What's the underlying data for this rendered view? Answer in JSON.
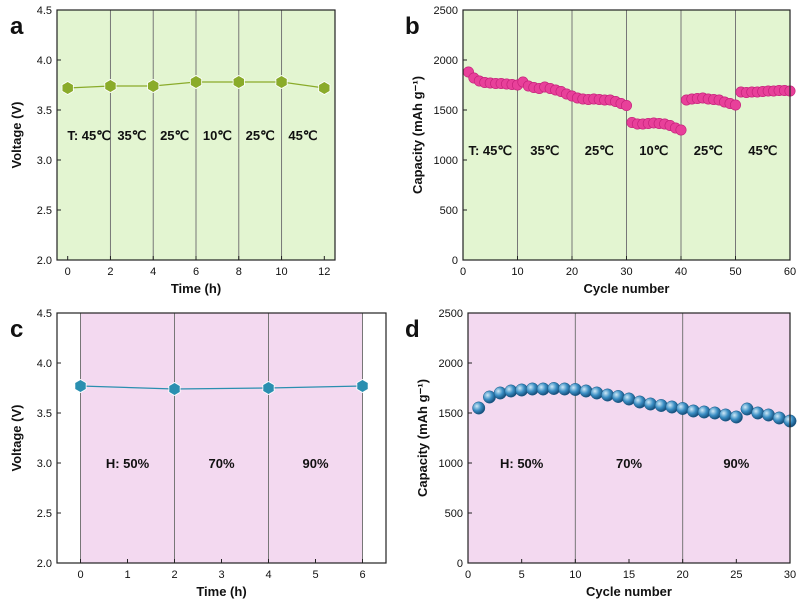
{
  "chart_data": [
    {
      "panel": "a",
      "type": "line",
      "xlabel": "Time (h)",
      "ylabel": "Voltage (V)",
      "xlim": [
        -0.5,
        12.5
      ],
      "ylim": [
        2.0,
        4.5
      ],
      "xticks": [
        "0",
        "2",
        "4",
        "6",
        "8",
        "10",
        "12"
      ],
      "yticks": [
        "2.0",
        "2.5",
        "3.0",
        "3.5",
        "4.0",
        "4.5"
      ],
      "xtick_values": [
        0,
        2,
        4,
        6,
        8,
        10,
        12
      ],
      "ytick_values": [
        2.0,
        2.5,
        3.0,
        3.5,
        4.0,
        4.5
      ],
      "background": "#e3f5d1",
      "dividers": [
        2,
        4,
        6,
        8,
        10
      ],
      "region_labels": [
        {
          "text": "T: 45℃",
          "x": 1.0,
          "y": 3.25
        },
        {
          "text": "35℃",
          "x": 3.0,
          "y": 3.25
        },
        {
          "text": "25℃",
          "x": 5.0,
          "y": 3.25
        },
        {
          "text": "10℃",
          "x": 7.0,
          "y": 3.25
        },
        {
          "text": "25℃",
          "x": 9.0,
          "y": 3.25
        },
        {
          "text": "45℃",
          "x": 11.0,
          "y": 3.25
        }
      ],
      "series": [
        {
          "name": "voltage",
          "color": "#8aab2a",
          "marker": "hexagon",
          "x": [
            0,
            2,
            4,
            6,
            8,
            10,
            12
          ],
          "values": [
            3.72,
            3.74,
            3.74,
            3.78,
            3.78,
            3.78,
            3.72
          ]
        }
      ]
    },
    {
      "panel": "b",
      "type": "scatter",
      "xlabel": "Cycle number",
      "ylabel": "Capacity (mAh g⁻¹)",
      "xlim": [
        0,
        60
      ],
      "ylim": [
        0,
        2500
      ],
      "xticks": [
        "0",
        "10",
        "20",
        "30",
        "40",
        "50",
        "60"
      ],
      "yticks": [
        "0",
        "500",
        "1000",
        "1500",
        "2000",
        "2500"
      ],
      "xtick_values": [
        0,
        10,
        20,
        30,
        40,
        50,
        60
      ],
      "ytick_values": [
        0,
        500,
        1000,
        1500,
        2000,
        2500
      ],
      "background": "#e3f5d1",
      "dividers": [
        10,
        20,
        30,
        40,
        50
      ],
      "region_labels": [
        {
          "text": "T: 45℃",
          "x": 5,
          "y": 1100
        },
        {
          "text": "35℃",
          "x": 15,
          "y": 1100
        },
        {
          "text": "25℃",
          "x": 25,
          "y": 1100
        },
        {
          "text": "10℃",
          "x": 35,
          "y": 1100
        },
        {
          "text": "25℃",
          "x": 45,
          "y": 1100
        },
        {
          "text": "45℃",
          "x": 55,
          "y": 1100
        }
      ],
      "series": [
        {
          "name": "capacity",
          "color": "#e8409a",
          "marker": "circle",
          "x": [
            1,
            2,
            3,
            4,
            5,
            6,
            7,
            8,
            9,
            10,
            11,
            12,
            13,
            14,
            15,
            16,
            17,
            18,
            19,
            20,
            21,
            22,
            23,
            24,
            25,
            26,
            27,
            28,
            29,
            30,
            31,
            32,
            33,
            34,
            35,
            36,
            37,
            38,
            39,
            40,
            41,
            42,
            43,
            44,
            45,
            46,
            47,
            48,
            49,
            50,
            51,
            52,
            53,
            54,
            55,
            56,
            57,
            58,
            59,
            60
          ],
          "values": [
            1880,
            1820,
            1790,
            1775,
            1770,
            1765,
            1765,
            1760,
            1755,
            1750,
            1780,
            1740,
            1725,
            1715,
            1730,
            1715,
            1700,
            1685,
            1660,
            1640,
            1620,
            1610,
            1605,
            1610,
            1605,
            1600,
            1600,
            1585,
            1565,
            1545,
            1375,
            1360,
            1360,
            1365,
            1370,
            1365,
            1360,
            1345,
            1320,
            1300,
            1600,
            1610,
            1615,
            1620,
            1610,
            1605,
            1600,
            1580,
            1565,
            1550,
            1680,
            1675,
            1680,
            1680,
            1685,
            1690,
            1690,
            1695,
            1695,
            1690
          ]
        }
      ]
    },
    {
      "panel": "c",
      "type": "line",
      "xlabel": "Time (h)",
      "ylabel": "Voltage (V)",
      "xlim": [
        -0.5,
        6.5
      ],
      "ylim": [
        2.0,
        4.5
      ],
      "xticks": [
        "0",
        "1",
        "2",
        "3",
        "4",
        "5",
        "6"
      ],
      "yticks": [
        "2.0",
        "2.5",
        "3.0",
        "3.5",
        "4.0",
        "4.5"
      ],
      "xtick_values": [
        0,
        1,
        2,
        3,
        4,
        5,
        6
      ],
      "ytick_values": [
        2.0,
        2.5,
        3.0,
        3.5,
        4.0,
        4.5
      ],
      "background": "#f3d9f0",
      "dividers": [
        2,
        4
      ],
      "region_labels": [
        {
          "text": "H: 50%",
          "x": 1.0,
          "y": 3.0
        },
        {
          "text": "70%",
          "x": 3.0,
          "y": 3.0
        },
        {
          "text": "90%",
          "x": 5.0,
          "y": 3.0
        }
      ],
      "series": [
        {
          "name": "voltage",
          "color": "#2a8fb0",
          "marker": "hexagon",
          "x": [
            0,
            2,
            4,
            6
          ],
          "values": [
            3.77,
            3.74,
            3.75,
            3.77
          ]
        }
      ]
    },
    {
      "panel": "d",
      "type": "scatter",
      "xlabel": "Cycle number",
      "ylabel": "Capacity (mAh g⁻¹)",
      "xlim": [
        0,
        30
      ],
      "ylim": [
        0,
        2500
      ],
      "xticks": [
        "0",
        "5",
        "10",
        "15",
        "20",
        "25",
        "30"
      ],
      "yticks": [
        "0",
        "500",
        "1000",
        "1500",
        "2000",
        "2500"
      ],
      "xtick_values": [
        0,
        5,
        10,
        15,
        20,
        25,
        30
      ],
      "ytick_values": [
        0,
        500,
        1000,
        1500,
        2000,
        2500
      ],
      "background": "#f3d9f0",
      "dividers": [
        10,
        20
      ],
      "region_labels": [
        {
          "text": "H: 50%",
          "x": 5,
          "y": 1000
        },
        {
          "text": "70%",
          "x": 15,
          "y": 1000
        },
        {
          "text": "90%",
          "x": 25,
          "y": 1000
        }
      ],
      "series": [
        {
          "name": "capacity",
          "color": "#2f7fb5",
          "marker": "sphere",
          "x": [
            1,
            2,
            3,
            4,
            5,
            6,
            7,
            8,
            9,
            10,
            11,
            12,
            13,
            14,
            15,
            16,
            17,
            18,
            19,
            20,
            21,
            22,
            23,
            24,
            25,
            26,
            27,
            28,
            29,
            30
          ],
          "values": [
            1550,
            1660,
            1700,
            1720,
            1730,
            1740,
            1740,
            1745,
            1740,
            1735,
            1720,
            1700,
            1680,
            1665,
            1640,
            1610,
            1590,
            1575,
            1560,
            1545,
            1520,
            1510,
            1500,
            1480,
            1460,
            1540,
            1500,
            1480,
            1450,
            1420
          ]
        }
      ]
    }
  ]
}
